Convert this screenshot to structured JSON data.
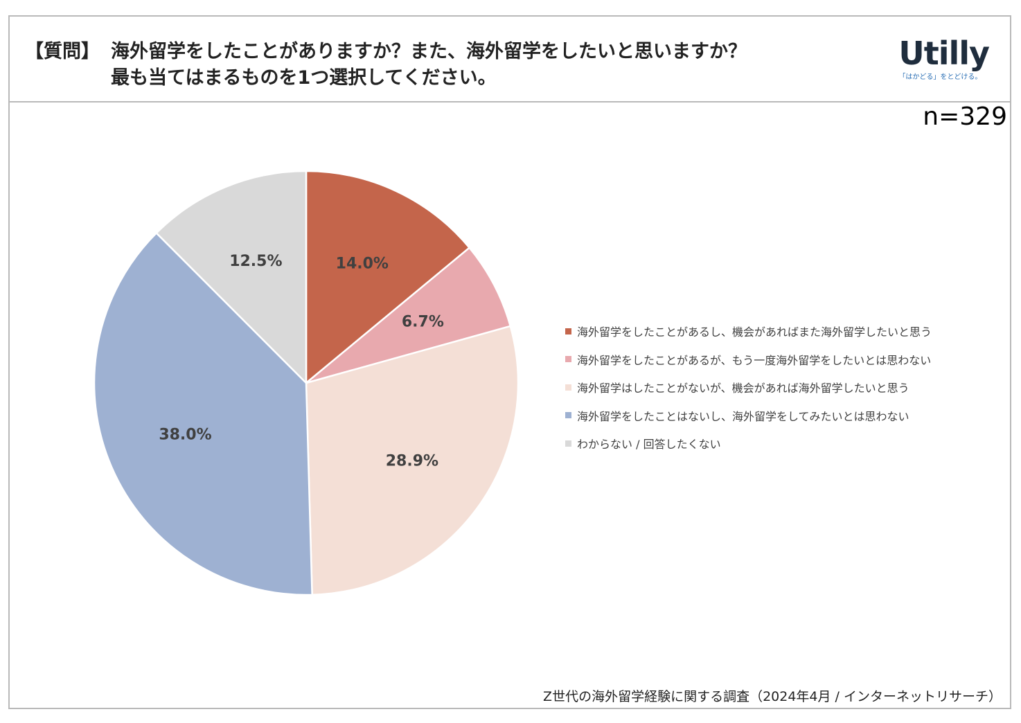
{
  "header": {
    "tag": "【質問】",
    "question_line1": "海外留学をしたことがありますか？また、海外留学をしたいと思いますか？",
    "question_line2": "最も当てはまるものを1つ選択してください。"
  },
  "logo": {
    "word": "Utilly",
    "tagline": "「はかどる」をとどける。"
  },
  "sample_size": "n=329",
  "source": "Z世代の海外留学経験に関する調査（2024年4月 / インターネットリサーチ）",
  "chart_data": {
    "type": "pie",
    "title": "",
    "start_angle_deg": 0,
    "direction": "clockwise",
    "legend_position": "right",
    "categories": [
      "海外留学をしたことがあるし、機会があればまた海外留学したいと思う",
      "海外留学をしたことがあるが、もう一度海外留学をしたいとは思わない",
      "海外留学はしたことがないが、機会があれば海外留学したいと思う",
      "海外留学をしたことはないし、海外留学をしてみたいとは思わない",
      "わからない / 回答したくない"
    ],
    "values": [
      14.0,
      6.7,
      28.9,
      38.0,
      12.5
    ],
    "labels": [
      "14.0%",
      "6.7%",
      "28.9%",
      "38.0%",
      "12.5%"
    ],
    "colors": [
      "#c4654b",
      "#e8a9ae",
      "#f4dfd6",
      "#9eb1d2",
      "#d9d9d9"
    ]
  }
}
